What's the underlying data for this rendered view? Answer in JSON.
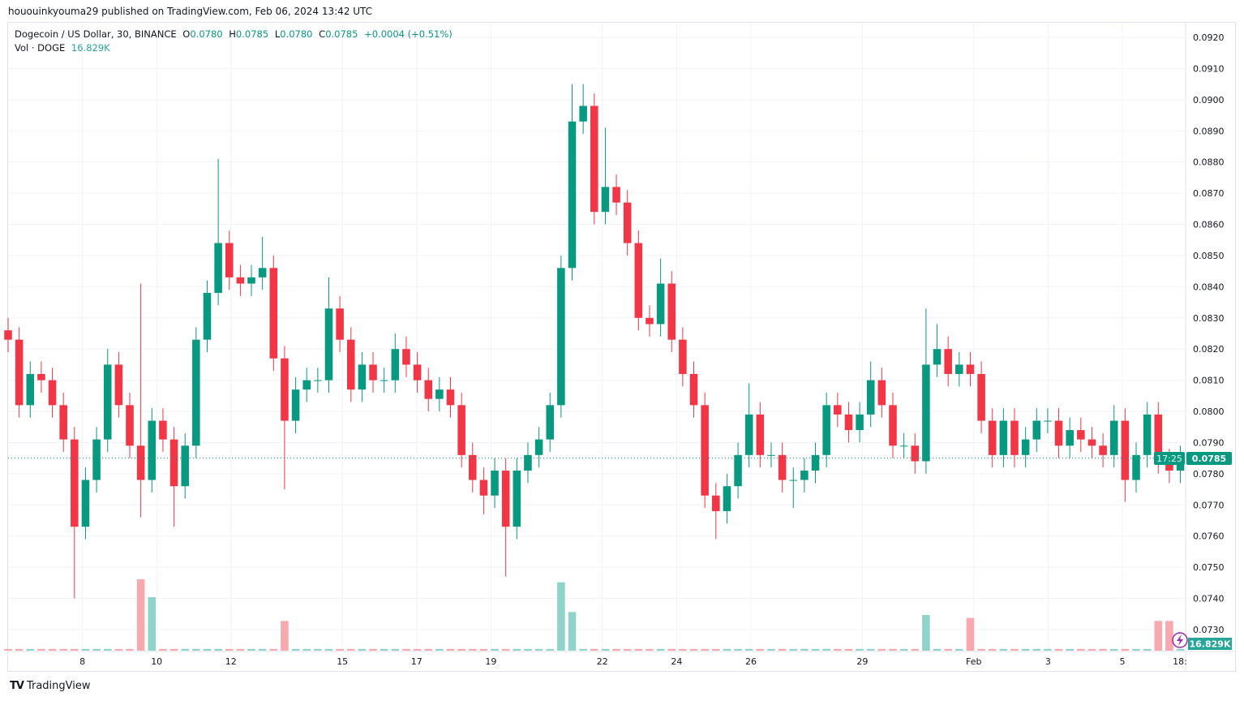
{
  "header": {
    "published": "hououinkyouma29 published on TradingView.com, Feb 06, 2024 13:42 UTC"
  },
  "legend": {
    "symbol": "Dogecoin / US Dollar, 30, BINANCE",
    "o_label": "O",
    "o": "0.0780",
    "h_label": "H",
    "h": "0.0785",
    "l_label": "L",
    "l": "0.0780",
    "c_label": "C",
    "c": "0.0785",
    "change": "+0.0004 (+0.51%)",
    "vol_label": "Vol · DOGE",
    "vol": "16.829K"
  },
  "price_label": {
    "price": "0.0785",
    "countdown": "17:25"
  },
  "volume_label": "16.829K",
  "brand": {
    "logo": "TV",
    "name": "TradingView"
  },
  "colors": {
    "up": "#089981",
    "down": "#f23645",
    "vol_up": "#8fd3cb",
    "vol_down": "#f7a9ae",
    "grid": "#f0f3fa",
    "lightning": "#9c27b0"
  },
  "icons": {
    "lightning": "lightning-icon",
    "logo": "tradingview-logo"
  },
  "chart_data": {
    "type": "candlestick",
    "title": "Dogecoin / US Dollar, 30, BINANCE",
    "start": "2024-01-06 00:00",
    "end": "2024-02-06 13:30",
    "ylim": [
      0.0725,
      0.0925
    ],
    "y_ticks": [
      "0.0920",
      "0.0910",
      "0.0900",
      "0.0890",
      "0.0880",
      "0.0870",
      "0.0860",
      "0.0850",
      "0.0840",
      "0.0830",
      "0.0820",
      "0.0810",
      "0.0800",
      "0.0790",
      "0.0780",
      "0.0770",
      "0.0760",
      "0.0750",
      "0.0740",
      "0.0730"
    ],
    "x_ticks": [
      {
        "label": "8",
        "date": "2024-01-08"
      },
      {
        "label": "10",
        "date": "2024-01-10"
      },
      {
        "label": "12",
        "date": "2024-01-12"
      },
      {
        "label": "15",
        "date": "2024-01-15"
      },
      {
        "label": "17",
        "date": "2024-01-17"
      },
      {
        "label": "19",
        "date": "2024-01-19"
      },
      {
        "label": "22",
        "date": "2024-01-22"
      },
      {
        "label": "24",
        "date": "2024-01-24"
      },
      {
        "label": "26",
        "date": "2024-01-26"
      },
      {
        "label": "29",
        "date": "2024-01-29"
      },
      {
        "label": "Feb",
        "date": "2024-02-01"
      },
      {
        "label": "3",
        "date": "2024-02-03"
      },
      {
        "label": "5",
        "date": "2024-02-05"
      },
      {
        "label": "18:",
        "date": "2024-02-06 18:00"
      }
    ],
    "grid": true,
    "last_price": 0.0785,
    "first_open": 0.0826,
    "closes": [
      0.0823,
      0.0802,
      0.0812,
      0.081,
      0.0802,
      0.0791,
      0.0763,
      0.0778,
      0.0791,
      0.0815,
      0.0802,
      0.0789,
      0.0778,
      0.0797,
      0.0791,
      0.0776,
      0.0789,
      0.0823,
      0.0838,
      0.0854,
      0.0843,
      0.0841,
      0.0843,
      0.0846,
      0.0817,
      0.0797,
      0.0807,
      0.081,
      0.081,
      0.0833,
      0.0823,
      0.0807,
      0.0815,
      0.081,
      0.081,
      0.082,
      0.0815,
      0.081,
      0.0804,
      0.0807,
      0.0802,
      0.0786,
      0.0778,
      0.0773,
      0.0781,
      0.0763,
      0.0781,
      0.0786,
      0.0791,
      0.0802,
      0.0846,
      0.0893,
      0.0898,
      0.0864,
      0.0872,
      0.0867,
      0.0854,
      0.083,
      0.0828,
      0.0841,
      0.0823,
      0.0812,
      0.0802,
      0.0773,
      0.0768,
      0.0776,
      0.0786,
      0.0799,
      0.0786,
      0.0786,
      0.0778,
      0.0778,
      0.0781,
      0.0786,
      0.0802,
      0.0799,
      0.0794,
      0.0799,
      0.081,
      0.0802,
      0.0789,
      0.0789,
      0.0784,
      0.0815,
      0.082,
      0.0812,
      0.0815,
      0.0812,
      0.0797,
      0.0786,
      0.0797,
      0.0786,
      0.0791,
      0.0797,
      0.0797,
      0.0789,
      0.0794,
      0.0791,
      0.0789,
      0.0786,
      0.0797,
      0.0778,
      0.0786,
      0.0799,
      0.0784,
      0.0781,
      0.0785
    ],
    "extreme_highs": {
      "9": 0.082,
      "12": 0.0841,
      "19": 0.0881,
      "23": 0.0856,
      "29": 0.0843,
      "35": 0.0825,
      "51": 0.0905,
      "52": 0.0905,
      "54": 0.0891,
      "59": 0.0849,
      "67": 0.0809,
      "74": 0.0806,
      "78": 0.0816,
      "83": 0.0833,
      "84": 0.0828,
      "100": 0.0802,
      "103": 0.0803
    },
    "extreme_lows": {
      "6": 0.074,
      "12": 0.0766,
      "15": 0.0763,
      "25": 0.0775,
      "43": 0.0767,
      "45": 0.0747,
      "64": 0.0759,
      "71": 0.0769,
      "101": 0.0771
    },
    "volume_default": 60,
    "volume_spikes": {
      "12": 2400,
      "13": 1800,
      "25": 1000,
      "50": 2300,
      "51": 1300,
      "83": 1200,
      "87": 1100,
      "104": 1000,
      "105": 1000
    },
    "volume_unit": "K"
  }
}
